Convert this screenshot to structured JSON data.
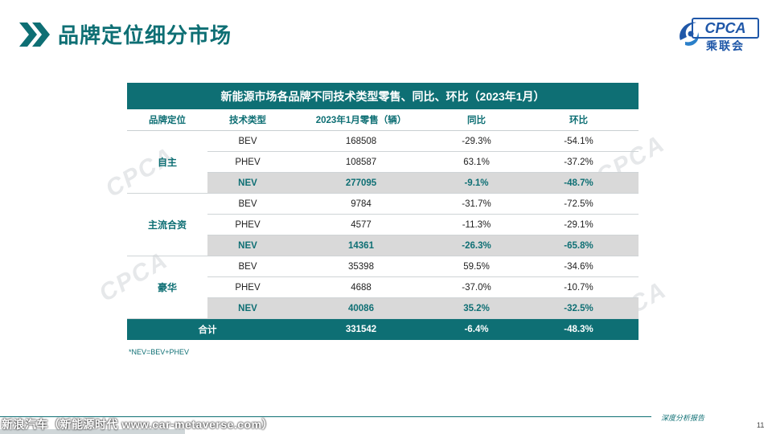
{
  "header": {
    "title": "品牌定位细分市场"
  },
  "logo": {
    "text": "CPCA",
    "cn": "乘联会"
  },
  "table": {
    "title": "新能源市场各品牌不同技术类型零售、同比、环比（2023年1月）",
    "columns": [
      "品牌定位",
      "技术类型",
      "2023年1月零售（辆）",
      "同比",
      "环比"
    ],
    "groups": [
      {
        "brand": "自主",
        "rows": [
          {
            "type": "BEV",
            "retail": "168508",
            "yoy": "-29.3%",
            "mom": "-54.1%"
          },
          {
            "type": "PHEV",
            "retail": "108587",
            "yoy": "63.1%",
            "mom": "-37.2%"
          },
          {
            "type": "NEV",
            "retail": "277095",
            "yoy": "-9.1%",
            "mom": "-48.7%"
          }
        ]
      },
      {
        "brand": "主流合资",
        "rows": [
          {
            "type": "BEV",
            "retail": "9784",
            "yoy": "-31.7%",
            "mom": "-72.5%"
          },
          {
            "type": "PHEV",
            "retail": "4577",
            "yoy": "-11.3%",
            "mom": "-29.1%"
          },
          {
            "type": "NEV",
            "retail": "14361",
            "yoy": "-26.3%",
            "mom": "-65.8%"
          }
        ]
      },
      {
        "brand": "豪华",
        "rows": [
          {
            "type": "BEV",
            "retail": "35398",
            "yoy": "59.5%",
            "mom": "-34.6%"
          },
          {
            "type": "PHEV",
            "retail": "4688",
            "yoy": "-37.0%",
            "mom": "-10.7%"
          },
          {
            "type": "NEV",
            "retail": "40086",
            "yoy": "35.2%",
            "mom": "-32.5%"
          }
        ]
      }
    ],
    "total": {
      "label": "合计",
      "retail": "331542",
      "yoy": "-6.4%",
      "mom": "-48.3%"
    }
  },
  "note": "*NEV=BEV+PHEV",
  "footer": {
    "report": "深度分析报告",
    "page": "11",
    "source": "新浪汽车（新能源时代 www.car-metaverse.com）"
  },
  "watermark": "CPCA",
  "colors": {
    "accent": "#0e6f74",
    "logo": "#1f57a8",
    "highlight_row": "#d9d9d9"
  }
}
